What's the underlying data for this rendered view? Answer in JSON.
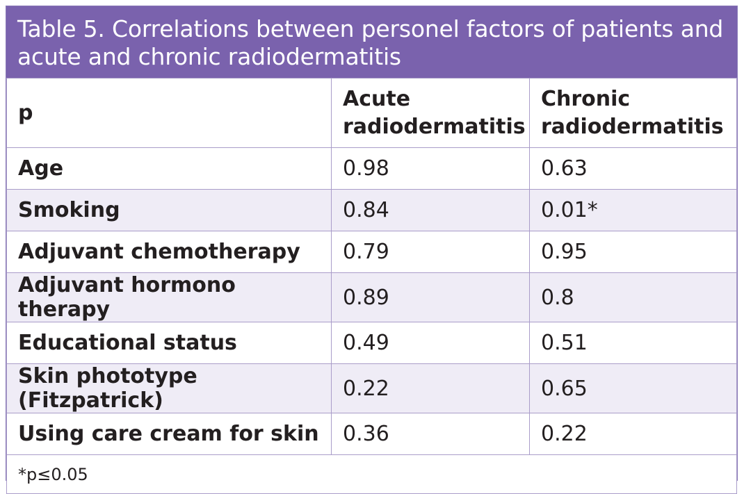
{
  "table": {
    "title": "Table 5. Correlations between personel factors of patients and acute and chronic radiodermatitis",
    "header": {
      "col1": "p",
      "col2": "Acute radiodermatitis",
      "col3": "Chronic radiodermatitis"
    },
    "rows": [
      {
        "factor": "Age",
        "acute": "0.98",
        "chronic": "0.63"
      },
      {
        "factor": "Smoking",
        "acute": "0.84",
        "chronic": "0.01*"
      },
      {
        "factor": "Adjuvant chemotherapy",
        "acute": "0.79",
        "chronic": "0.95"
      },
      {
        "factor": "Adjuvant hormono therapy",
        "acute": "0.89",
        "chronic": "0.8"
      },
      {
        "factor": "Educational status",
        "acute": "0.49",
        "chronic": "0.51"
      },
      {
        "factor": "Skin phototype (Fitzpatrick)",
        "acute": "0.22",
        "chronic": "0.65"
      },
      {
        "factor": "Using care cream for skin",
        "acute": "0.36",
        "chronic": "0.22"
      }
    ],
    "footnote": "*p≤0.05"
  },
  "colors": {
    "header_bg": "#7a62ad",
    "stripe_bg": "#efecf6",
    "border": "#a99cc9"
  }
}
